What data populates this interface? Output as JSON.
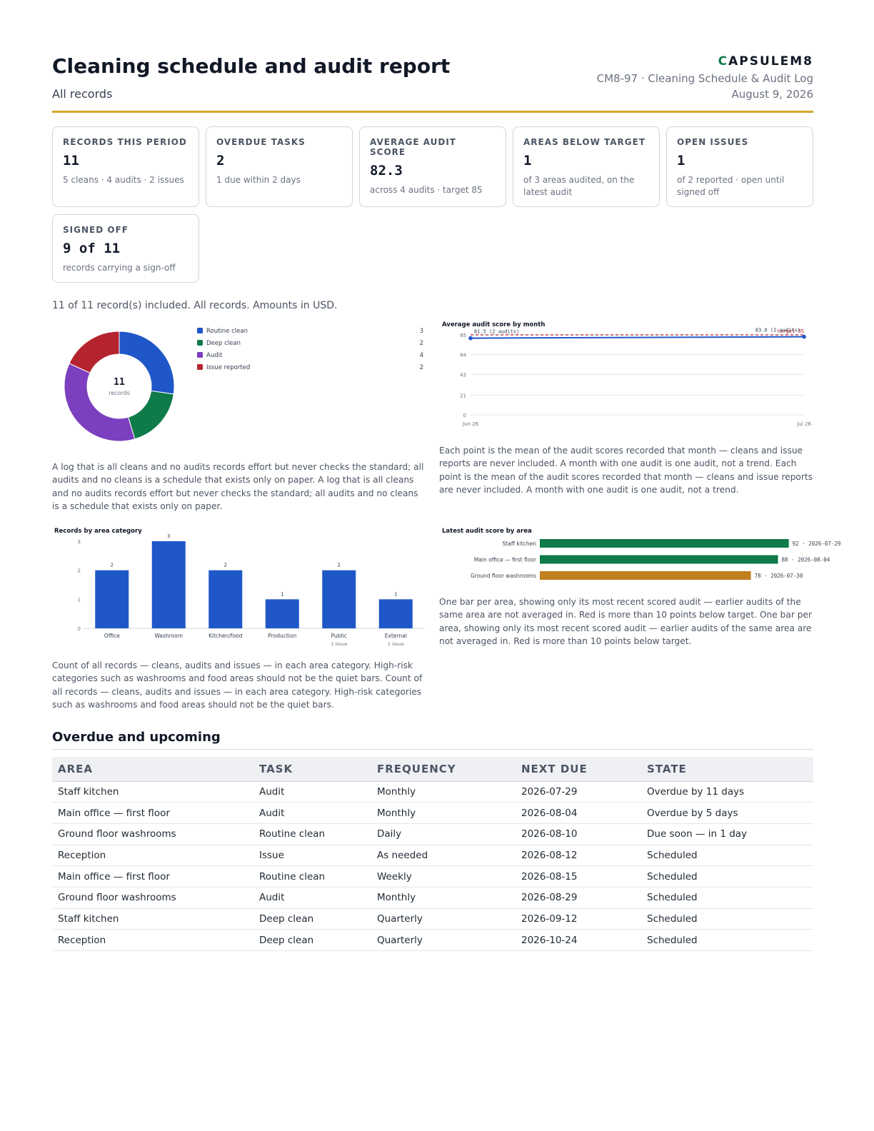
{
  "header": {
    "title": "Cleaning schedule and audit report",
    "subtitle": "All records",
    "brand_mark": "C",
    "brand_rest": "APSULEM8",
    "doc_id": "CM8-97 · Cleaning Schedule & Audit Log",
    "date": "August 9, 2026"
  },
  "kpis": [
    {
      "label": "RECORDS THIS PERIOD",
      "value": "11",
      "note": "5 cleans · 4 audits · 2 issues"
    },
    {
      "label": "OVERDUE TASKS",
      "value": "2",
      "note": "1 due within 2 days"
    },
    {
      "label": "AVERAGE AUDIT SCORE",
      "value": "82.3",
      "note": "across 4 audits · target 85"
    },
    {
      "label": "AREAS BELOW TARGET",
      "value": "1",
      "note": "of 3 areas audited, on the latest audit"
    },
    {
      "label": "OPEN ISSUES",
      "value": "1",
      "note": "of 2 reported · open until signed off"
    },
    {
      "label": "SIGNED OFF",
      "value": "9 of 11",
      "note": "records carrying a sign-off"
    }
  ],
  "included_note": "11 of 11 record(s) included. All records. Amounts in USD.",
  "captions": {
    "donut": "A log that is all cleans and no audits records effort but never checks the standard; all audits and no cleans is a schedule that exists only on paper. A log that is all cleans and no audits records effort but never checks the standard; all audits and no cleans is a schedule that exists only on paper.",
    "line": "Each point is the mean of the audit scores recorded that month — cleans and issue reports are never included. A month with one audit is one audit, not a trend. Each point is the mean of the audit scores recorded that month — cleans and issue reports are never included. A month with one audit is one audit, not a trend.",
    "bar": "Count of all records — cleans, audits and issues — in each area category. High-risk categories such as washrooms and food areas should not be the quiet bars. Count of all records — cleans, audits and issues — in each area category. High-risk categories such as washrooms and food areas should not be the quiet bars.",
    "hbar": "One bar per area, showing only its most recent scored audit — earlier audits of the same area are not averaged in. Red is more than 10 points below target. One bar per area, showing only its most recent scored audit — earlier audits of the same area are not averaged in. Red is more than 10 points below target."
  },
  "chart_data": [
    {
      "type": "pie",
      "center_value": "11",
      "center_label": "records",
      "categories": [
        "Routine clean",
        "Deep clean",
        "Audit",
        "Issue reported"
      ],
      "values": [
        3,
        2,
        4,
        2
      ],
      "colors": [
        "#1f57c8",
        "#0f7a4a",
        "#7b3fbf",
        "#b5232f"
      ],
      "legend": "right"
    },
    {
      "type": "line",
      "title": "Average audit score by month",
      "x": [
        "Jun 26",
        "Jul 26"
      ],
      "values": [
        81.5,
        83.0
      ],
      "point_labels": [
        "81.5 (2 audits)",
        "83.0 (2 audits)"
      ],
      "target": 85,
      "target_label": "target 85",
      "y_ticks": [
        0,
        21,
        43,
        64,
        85
      ],
      "ylim": [
        0,
        85
      ],
      "grid": true,
      "line_color": "#1f57c8",
      "target_color": "#b5232f"
    },
    {
      "type": "bar",
      "title": "Records by area category",
      "categories": [
        "Office",
        "Washroom",
        "Kitchen/food",
        "Production",
        "Public",
        "External"
      ],
      "sublabels": [
        "",
        "",
        "",
        "",
        "1 issue",
        "1 issue"
      ],
      "values": [
        2,
        3,
        2,
        1,
        2,
        1
      ],
      "y_ticks": [
        0,
        1,
        2,
        3
      ],
      "ylim": [
        0,
        3
      ],
      "color": "#1f57c8"
    },
    {
      "type": "bar",
      "orientation": "horizontal",
      "title": "Latest audit score by area",
      "categories": [
        "Staff kitchen",
        "Main office — first floor",
        "Ground floor washrooms"
      ],
      "values": [
        92,
        88,
        78
      ],
      "value_labels": [
        "92 · 2026-07-29",
        "88 · 2026-08-04",
        "78 · 2026-07-30"
      ],
      "colors": [
        "#0f7a4a",
        "#0f7a4a",
        "#c0801f"
      ],
      "xlim": [
        0,
        100
      ]
    }
  ],
  "schedule": {
    "title": "Overdue and upcoming",
    "columns": [
      "AREA",
      "TASK",
      "FREQUENCY",
      "NEXT DUE",
      "STATE"
    ],
    "rows": [
      [
        "Staff kitchen",
        "Audit",
        "Monthly",
        "2026-07-29",
        "Overdue by 11 days"
      ],
      [
        "Main office — first floor",
        "Audit",
        "Monthly",
        "2026-08-04",
        "Overdue by 5 days"
      ],
      [
        "Ground floor washrooms",
        "Routine clean",
        "Daily",
        "2026-08-10",
        "Due soon — in 1 day"
      ],
      [
        "Reception",
        "Issue",
        "As needed",
        "2026-08-12",
        "Scheduled"
      ],
      [
        "Main office — first floor",
        "Routine clean",
        "Weekly",
        "2026-08-15",
        "Scheduled"
      ],
      [
        "Ground floor washrooms",
        "Audit",
        "Monthly",
        "2026-08-29",
        "Scheduled"
      ],
      [
        "Staff kitchen",
        "Deep clean",
        "Quarterly",
        "2026-09-12",
        "Scheduled"
      ],
      [
        "Reception",
        "Deep clean",
        "Quarterly",
        "2026-10-24",
        "Scheduled"
      ]
    ]
  }
}
